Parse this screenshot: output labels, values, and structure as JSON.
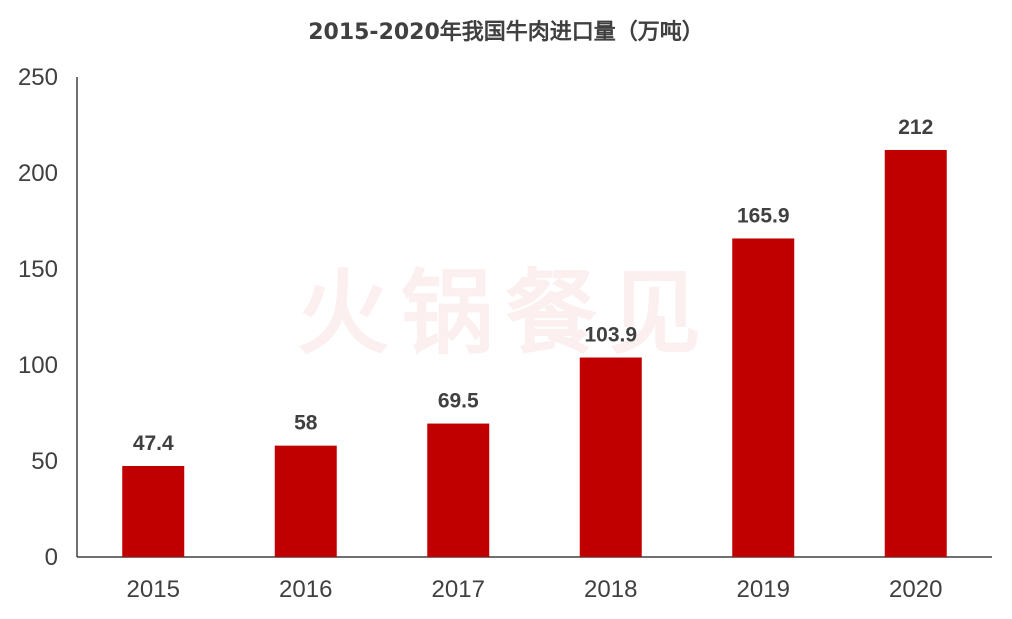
{
  "chart_data": {
    "type": "bar",
    "title": "2015-2020年我国牛肉进口量（万吨）",
    "categories": [
      "2015",
      "2016",
      "2017",
      "2018",
      "2019",
      "2020"
    ],
    "values": [
      47.4,
      58,
      69.5,
      103.9,
      165.9,
      212
    ],
    "value_labels": [
      "47.4",
      "58",
      "69.5",
      "103.9",
      "165.9",
      "212"
    ],
    "y_ticks": [
      "0",
      "50",
      "100",
      "150",
      "200",
      "250"
    ],
    "ylim": [
      0,
      250
    ],
    "xlabel": "",
    "ylabel": "",
    "grid": false,
    "legend": "none",
    "bar_color": "#C00000"
  },
  "watermark_text": "火锅餐见"
}
